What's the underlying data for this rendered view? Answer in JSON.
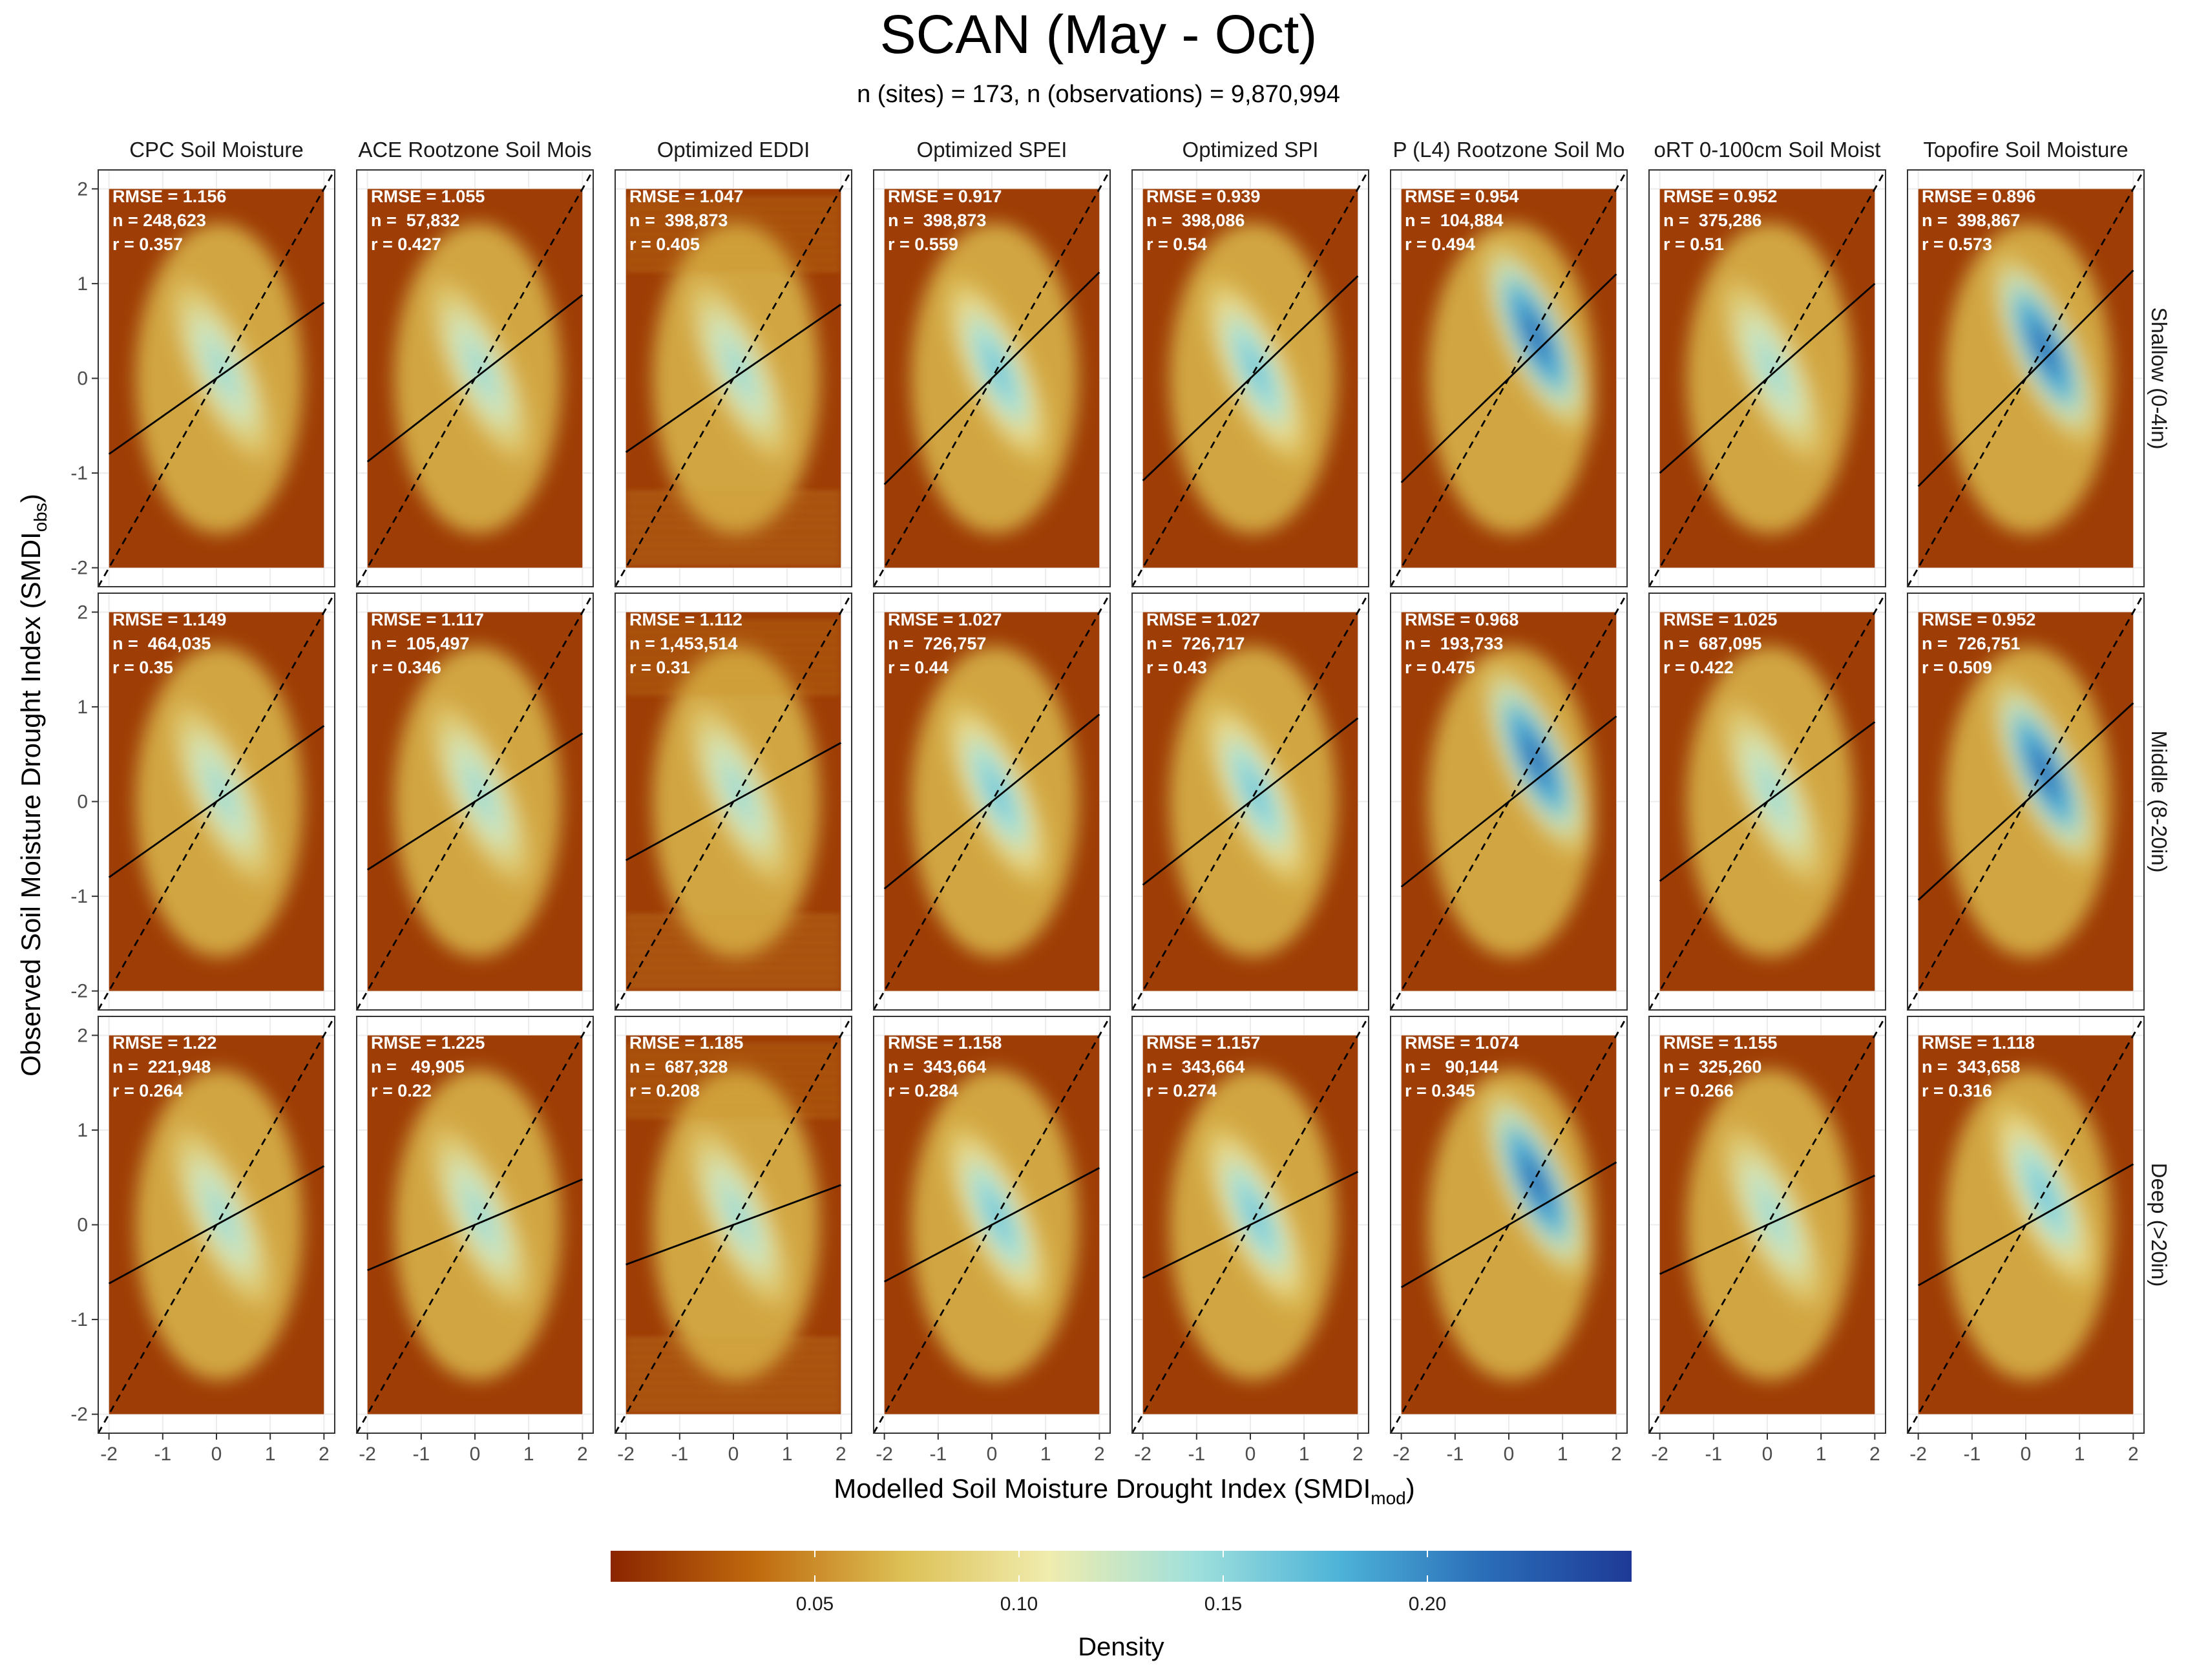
{
  "chart_data": {
    "type": "heatmap",
    "title": "SCAN (May - Oct)",
    "subtitle": "n (sites) = 173, n (observations) = 9,870,994",
    "xlabel": "Modelled Soil Moisture Drought Index (",
    "xlabel_sym": "SMDI",
    "xlabel_sub": "mod",
    "xlabel_close": ")",
    "ylabel": "Observed Soil Moisture Drought Index (",
    "ylabel_sym": "SMDI",
    "ylabel_sub": "obs",
    "ylabel_close": ")",
    "xlim": [
      -2.2,
      2.2
    ],
    "ylim": [
      -2.2,
      2.2
    ],
    "x_ticks": [
      "-2",
      "-1",
      "0",
      "1",
      "2"
    ],
    "y_ticks": [
      "-2",
      "-1",
      "0",
      "1",
      "2"
    ],
    "columns": [
      "CPC Soil Moisture",
      "ACE Rootzone Soil Mois",
      "Optimized EDDI",
      "Optimized SPEI",
      "Optimized SPI",
      "P (L4) Rootzone Soil Mo",
      "oRT 0-100cm Soil Moist",
      "Topofire Soil Moisture"
    ],
    "rows": [
      "Shallow (0-4in)",
      "Middle (8-20in)",
      "Deep (>20in)"
    ],
    "legend": {
      "title": "Density",
      "ticks": [
        "0.05",
        "0.10",
        "0.15",
        "0.20"
      ],
      "tick_values": [
        0.05,
        0.1,
        0.15,
        0.2
      ],
      "range": [
        0.0,
        0.25
      ],
      "colors": [
        "#8b2500",
        "#c06a0e",
        "#dcc055",
        "#f0ecae",
        "#a0e0dc",
        "#4db3d8",
        "#2a6db8",
        "#1e3a96"
      ]
    },
    "panels": [
      [
        {
          "rmse": "1.156",
          "n": "248,623",
          "r": "0.357",
          "slope": 0.4
        },
        {
          "rmse": "1.055",
          "n": " 57,832",
          "r": "0.427",
          "slope": 0.44
        },
        {
          "rmse": "1.047",
          "n": " 398,873",
          "r": "0.405",
          "slope": 0.39
        },
        {
          "rmse": "0.917",
          "n": " 398,873",
          "r": "0.559",
          "slope": 0.56
        },
        {
          "rmse": "0.939",
          "n": " 398,086",
          "r": "0.54",
          "slope": 0.54
        },
        {
          "rmse": "0.954",
          "n": " 104,884",
          "r": "0.494",
          "slope": 0.55
        },
        {
          "rmse": "0.952",
          "n": " 375,286",
          "r": "0.51",
          "slope": 0.5
        },
        {
          "rmse": "0.896",
          "n": " 398,867",
          "r": "0.573",
          "slope": 0.57
        }
      ],
      [
        {
          "rmse": "1.149",
          "n": " 464,035",
          "r": "0.35",
          "slope": 0.4
        },
        {
          "rmse": "1.117",
          "n": " 105,497",
          "r": "0.346",
          "slope": 0.36
        },
        {
          "rmse": "1.112",
          "n": "1,453,514",
          "r": "0.31",
          "slope": 0.31
        },
        {
          "rmse": "1.027",
          "n": " 726,757",
          "r": "0.44",
          "slope": 0.46
        },
        {
          "rmse": "1.027",
          "n": " 726,717",
          "r": "0.43",
          "slope": 0.44
        },
        {
          "rmse": "0.968",
          "n": " 193,733",
          "r": "0.475",
          "slope": 0.45
        },
        {
          "rmse": "1.025",
          "n": " 687,095",
          "r": "0.422",
          "slope": 0.42
        },
        {
          "rmse": "0.952",
          "n": " 726,751",
          "r": "0.509",
          "slope": 0.52
        }
      ],
      [
        {
          "rmse": "1.22",
          "n": " 221,948",
          "r": "0.264",
          "slope": 0.31
        },
        {
          "rmse": "1.225",
          "n": "  49,905",
          "r": "0.22",
          "slope": 0.24
        },
        {
          "rmse": "1.185",
          "n": " 687,328",
          "r": "0.208",
          "slope": 0.21
        },
        {
          "rmse": "1.158",
          "n": " 343,664",
          "r": "0.284",
          "slope": 0.3
        },
        {
          "rmse": "1.157",
          "n": " 343,664",
          "r": "0.274",
          "slope": 0.28
        },
        {
          "rmse": "1.074",
          "n": "  90,144",
          "r": "0.345",
          "slope": 0.33
        },
        {
          "rmse": "1.155",
          "n": " 325,260",
          "r": "0.266",
          "slope": 0.26
        },
        {
          "rmse": "1.118",
          "n": " 343,658",
          "r": "0.316",
          "slope": 0.32
        }
      ]
    ],
    "stat_labels": {
      "rmse": "RMSE = ",
      "n": "n = ",
      "r": "r = "
    }
  }
}
